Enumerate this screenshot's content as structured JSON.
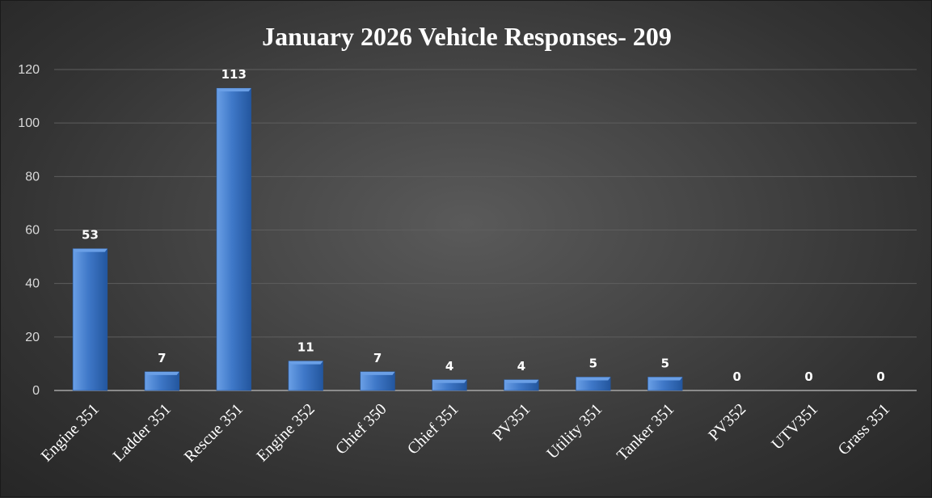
{
  "chart_data": {
    "type": "bar",
    "title": "January 2026 Vehicle Responses- 209",
    "xlabel": "",
    "ylabel": "",
    "categories": [
      "Engine 351",
      "Ladder 351",
      "Rescue 351",
      "Engine 352",
      "Chief 350",
      "Chief 351",
      "PV351",
      "Utility 351",
      "Tanker 351",
      "PV352",
      "UTV351",
      "Grass 351"
    ],
    "values": [
      53,
      7,
      113,
      11,
      7,
      4,
      4,
      5,
      5,
      0,
      0,
      0
    ],
    "ylim": [
      0,
      120
    ],
    "yticks": [
      0,
      20,
      40,
      60,
      80,
      100,
      120
    ],
    "grid": true,
    "legend": "none",
    "colors": {
      "bar": "#3f78c8",
      "bar_light": "#6a9fe6",
      "bar_dark": "#23569e",
      "grid": "#5e5e5e",
      "axis": "#a6a6a6"
    }
  }
}
